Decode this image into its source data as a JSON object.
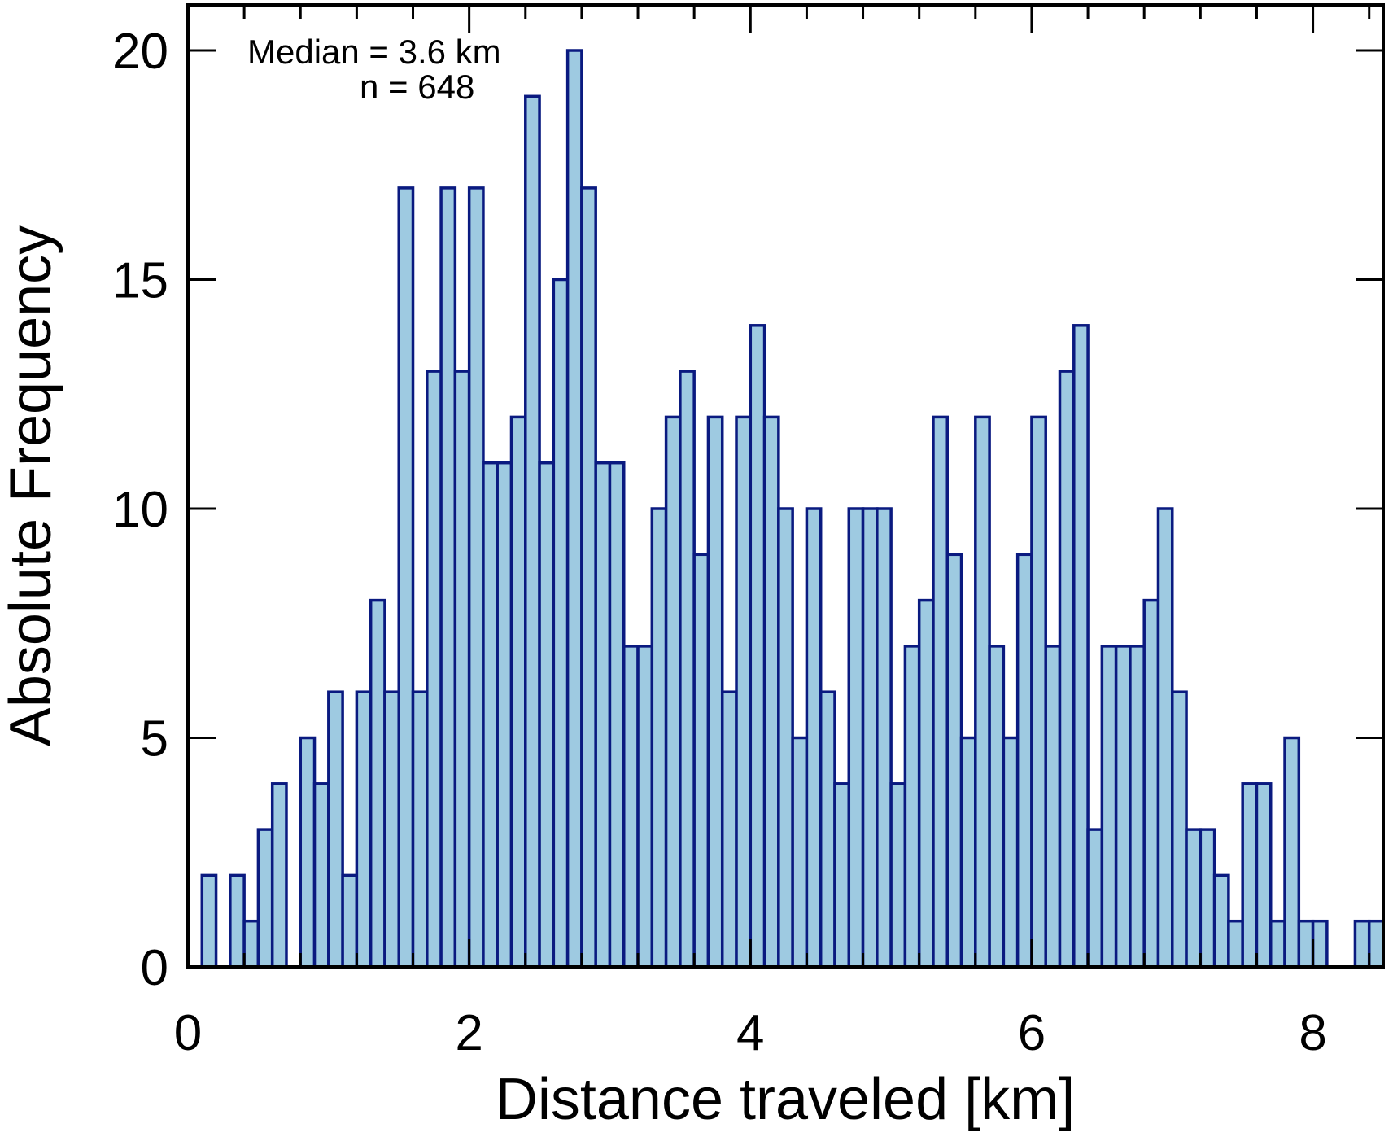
{
  "chart_data": {
    "type": "bar",
    "xlabel": "Distance traveled [km]",
    "ylabel": "Absolute Frequency",
    "xlim": [
      0,
      8.5
    ],
    "ylim": [
      0,
      20
    ],
    "bin_width": 0.1,
    "bin_starts": [
      0.1,
      0.2,
      0.3,
      0.4,
      0.5,
      0.6,
      0.7,
      0.8,
      0.9,
      1.0,
      1.1,
      1.2,
      1.3,
      1.4,
      1.5,
      1.6,
      1.7,
      1.8,
      1.9,
      2.0,
      2.1,
      2.2,
      2.3,
      2.4,
      2.5,
      2.6,
      2.7,
      2.8,
      2.9,
      3.0,
      3.1,
      3.2,
      3.3,
      3.4,
      3.5,
      3.6,
      3.7,
      3.8,
      3.9,
      4.0,
      4.1,
      4.2,
      4.3,
      4.4,
      4.5,
      4.6,
      4.7,
      4.8,
      4.9,
      5.0,
      5.1,
      5.2,
      5.3,
      5.4,
      5.5,
      5.6,
      5.7,
      5.8,
      5.9,
      6.0,
      6.1,
      6.2,
      6.3,
      6.4,
      6.5,
      6.6,
      6.7,
      6.8,
      6.9,
      7.0,
      7.1,
      7.2,
      7.3,
      7.4,
      7.5,
      7.6,
      7.7,
      7.8,
      7.9,
      8.0,
      8.1,
      8.2,
      8.3,
      8.4
    ],
    "values": [
      2,
      0,
      2,
      1,
      3,
      4,
      0,
      5,
      4,
      6,
      2,
      6,
      8,
      6,
      17,
      6,
      13,
      17,
      13,
      17,
      11,
      11,
      12,
      19,
      11,
      15,
      20,
      17,
      11,
      11,
      7,
      7,
      10,
      12,
      13,
      9,
      12,
      6,
      12,
      14,
      12,
      10,
      5,
      10,
      6,
      4,
      10,
      10,
      10,
      4,
      7,
      8,
      12,
      9,
      5,
      12,
      7,
      5,
      9,
      12,
      7,
      13,
      14,
      3,
      7,
      7,
      7,
      8,
      10,
      6,
      3,
      3,
      2,
      1,
      4,
      4,
      1,
      5,
      1,
      1,
      0,
      0,
      1,
      1
    ],
    "x_ticks": [
      0,
      2,
      4,
      6,
      8
    ],
    "x_tick_labels": [
      "0",
      "2",
      "4",
      "6",
      "8"
    ],
    "y_ticks": [
      0,
      5,
      10,
      15,
      20
    ],
    "y_tick_labels": [
      "0",
      "5",
      "10",
      "15",
      "20"
    ],
    "annotations": [
      "Median = 3.6 km",
      "n = 648"
    ],
    "grid": false,
    "bar_fill": "#9ecae1",
    "bar_edge": "#0a1a80"
  }
}
